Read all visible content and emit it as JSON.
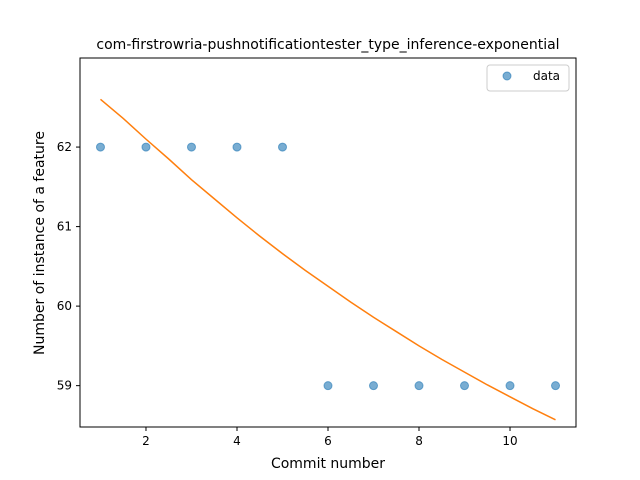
{
  "chart_data": {
    "type": "scatter",
    "title": "com-firstrowria-pushnotificationtester_type_inference-exponential",
    "xlabel": "Commit number",
    "ylabel": "Number of instance of a feature",
    "xlim": [
      0.55,
      11.45
    ],
    "ylim": [
      58.48,
      63.12
    ],
    "xticks": [
      2,
      4,
      6,
      8,
      10
    ],
    "yticks": [
      59,
      60,
      61,
      62
    ],
    "grid": false,
    "legend": {
      "placement": "top-right",
      "entries": [
        "data"
      ]
    },
    "series": [
      {
        "name": "data",
        "kind": "points",
        "color": "#1f77b4",
        "x": [
          1,
          2,
          3,
          4,
          5,
          6,
          7,
          8,
          9,
          10,
          11
        ],
        "y": [
          62,
          62,
          62,
          62,
          62,
          59,
          59,
          59,
          59,
          59,
          59
        ]
      },
      {
        "kind": "line",
        "color": "#ff7f0e",
        "x": [
          1,
          1.5,
          2,
          2.5,
          3,
          3.5,
          4,
          4.5,
          5,
          5.5,
          6,
          6.5,
          7,
          7.5,
          8,
          8.5,
          9,
          9.5,
          10,
          10.5,
          11
        ],
        "y": [
          62.6,
          62.36,
          62.1,
          61.85,
          61.59,
          61.35,
          61.11,
          60.88,
          60.66,
          60.45,
          60.25,
          60.05,
          59.86,
          59.68,
          59.5,
          59.33,
          59.17,
          59.01,
          58.86,
          58.71,
          58.57
        ]
      }
    ]
  }
}
